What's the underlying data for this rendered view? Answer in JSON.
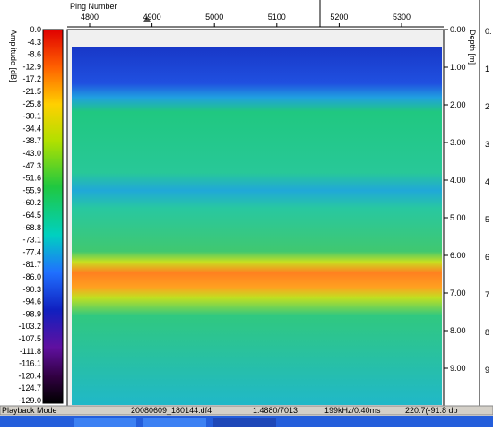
{
  "amplitude_scale": {
    "label": "Amplitude [dB]",
    "ticks": [
      "0.0",
      "-4.3",
      "-8.6",
      "-12.9",
      "-17.2",
      "-21.5",
      "-25.8",
      "-30.1",
      "-34.4",
      "-38.7",
      "-43.0",
      "-47.3",
      "-51.6",
      "-55.9",
      "-60.2",
      "-64.5",
      "-68.8",
      "-73.1",
      "-77.4",
      "-81.7",
      "-86.0",
      "-90.3",
      "-94.6",
      "-98.9",
      "-103.2",
      "-107.5",
      "-111.8",
      "-116.1",
      "-120.4",
      "-124.7",
      "-129.0"
    ]
  },
  "ping_axis": {
    "label": "Ping Number",
    "ticks": [
      "4800",
      "4900",
      "5000",
      "5100",
      "5200",
      "5300"
    ]
  },
  "depth_axis": {
    "label": "Depth [m]",
    "ticks": [
      "0.00",
      "1.00",
      "2.00",
      "3.00",
      "4.00",
      "5.00",
      "6.00",
      "7.00",
      "8.00",
      "9.00"
    ]
  },
  "side_panel": {
    "ticks": [
      "0.",
      "1",
      "2",
      "3",
      "4",
      "5",
      "6",
      "7",
      "8",
      "9"
    ]
  },
  "status_bar": {
    "mode": "Playback Mode",
    "file": "20080609_180144.df4",
    "ping": "1:4880/7013",
    "frequency": "199kHz/0.40ms",
    "reading": "220.7(-91.8 db"
  }
}
